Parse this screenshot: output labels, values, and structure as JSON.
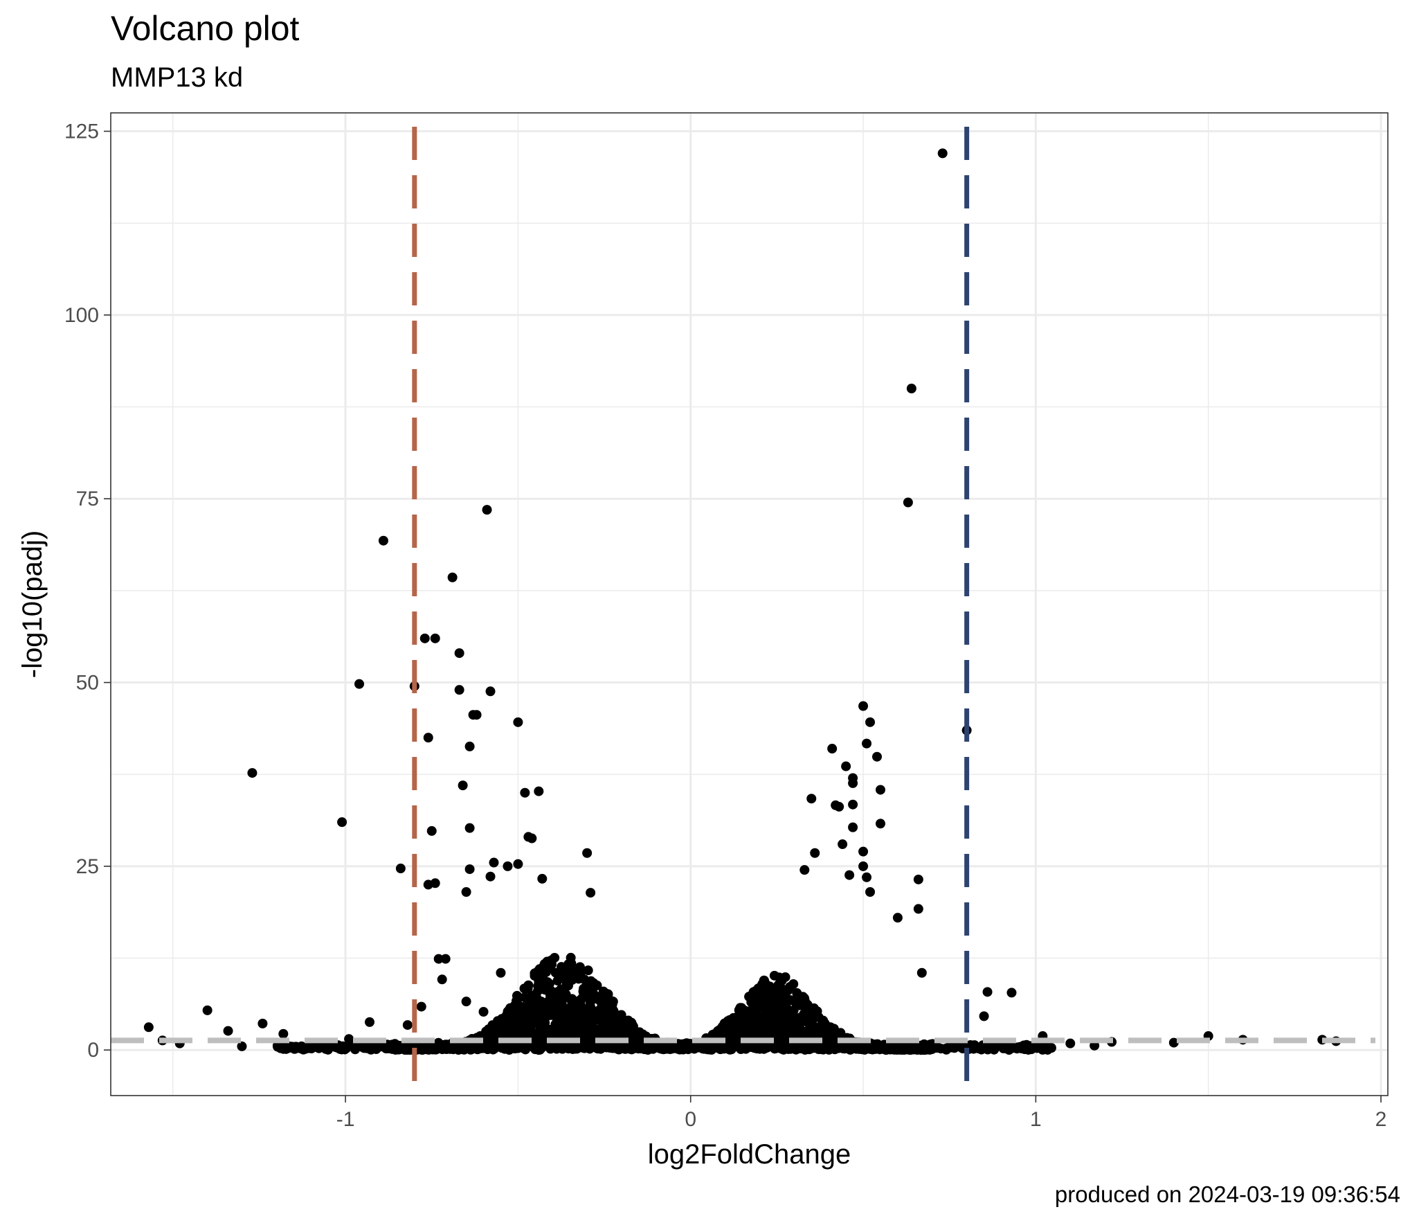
{
  "chart_data": {
    "type": "scatter",
    "title": "Volcano plot",
    "subtitle": "MMP13 kd",
    "caption": "produced on 2024-03-19 09:36:54",
    "xlabel": "log2FoldChange",
    "ylabel": "-log10(padj)",
    "xlim": [
      -1.68,
      2.02
    ],
    "ylim": [
      -6.2,
      127.5
    ],
    "x_ticks": [
      -1,
      0,
      1,
      2
    ],
    "x_tick_labels": [
      "-1",
      "0",
      "1",
      "2"
    ],
    "y_ticks": [
      0,
      25,
      50,
      75,
      100,
      125
    ],
    "y_tick_labels": [
      "0",
      "25",
      "50",
      "75",
      "100",
      "125"
    ],
    "grid": true,
    "legend": "none",
    "point_color": "#000000",
    "reference_lines": [
      {
        "orientation": "vertical",
        "value": -0.8,
        "color": "#B5654A",
        "style": "dashed"
      },
      {
        "orientation": "vertical",
        "value": 0.8,
        "color": "#2E4470",
        "style": "dashed"
      },
      {
        "orientation": "horizontal",
        "value": 1.3,
        "color": "#BEBEBE",
        "style": "dashed"
      }
    ],
    "points": [
      [
        0.73,
        122.0
      ],
      [
        0.64,
        90.0
      ],
      [
        0.63,
        74.5
      ],
      [
        0.8,
        43.5
      ],
      [
        -0.59,
        73.5
      ],
      [
        -0.89,
        69.3
      ],
      [
        -0.69,
        64.3
      ],
      [
        -0.77,
        56.0
      ],
      [
        -0.74,
        56.0
      ],
      [
        -0.67,
        54.0
      ],
      [
        -0.96,
        49.8
      ],
      [
        -0.8,
        49.5
      ],
      [
        -0.67,
        49.0
      ],
      [
        -0.58,
        48.8
      ],
      [
        -0.63,
        45.6
      ],
      [
        -0.62,
        45.6
      ],
      [
        -0.5,
        44.6
      ],
      [
        -0.76,
        42.5
      ],
      [
        -0.64,
        41.3
      ],
      [
        -1.27,
        37.7
      ],
      [
        -0.66,
        36.0
      ],
      [
        -0.48,
        35.0
      ],
      [
        -0.44,
        35.2
      ],
      [
        -1.01,
        31.0
      ],
      [
        -0.75,
        29.8
      ],
      [
        -0.64,
        30.2
      ],
      [
        -0.47,
        29.0
      ],
      [
        -0.46,
        28.8
      ],
      [
        -0.3,
        26.8
      ],
      [
        -0.84,
        24.7
      ],
      [
        -0.64,
        24.6
      ],
      [
        -0.58,
        23.6
      ],
      [
        -0.57,
        25.5
      ],
      [
        -0.53,
        25.0
      ],
      [
        -0.5,
        25.3
      ],
      [
        -0.76,
        22.5
      ],
      [
        -0.74,
        22.7
      ],
      [
        -0.65,
        21.5
      ],
      [
        -0.43,
        23.3
      ],
      [
        -0.29,
        21.4
      ],
      [
        0.5,
        46.8
      ],
      [
        0.52,
        44.6
      ],
      [
        0.51,
        41.7
      ],
      [
        0.54,
        39.9
      ],
      [
        0.41,
        41.0
      ],
      [
        0.45,
        38.6
      ],
      [
        0.47,
        37.0
      ],
      [
        0.47,
        36.3
      ],
      [
        0.55,
        35.4
      ],
      [
        0.35,
        34.2
      ],
      [
        0.42,
        33.3
      ],
      [
        0.43,
        33.1
      ],
      [
        0.47,
        33.4
      ],
      [
        0.47,
        30.3
      ],
      [
        0.55,
        30.8
      ],
      [
        0.44,
        28.0
      ],
      [
        0.36,
        26.8
      ],
      [
        0.5,
        27.0
      ],
      [
        0.5,
        25.0
      ],
      [
        0.33,
        24.5
      ],
      [
        0.46,
        23.8
      ],
      [
        0.51,
        23.5
      ],
      [
        0.66,
        23.2
      ],
      [
        0.52,
        21.5
      ],
      [
        0.66,
        19.2
      ],
      [
        0.6,
        18.0
      ],
      [
        0.86,
        7.9
      ],
      [
        0.93,
        7.8
      ],
      [
        0.85,
        4.6
      ],
      [
        0.67,
        10.5
      ],
      [
        -1.4,
        5.4
      ],
      [
        -1.57,
        3.1
      ],
      [
        -1.34,
        2.6
      ],
      [
        -1.24,
        3.6
      ],
      [
        -1.18,
        2.2
      ],
      [
        -0.93,
        3.8
      ],
      [
        -0.82,
        3.4
      ],
      [
        -0.78,
        5.9
      ],
      [
        -0.72,
        9.6
      ],
      [
        -0.71,
        12.4
      ],
      [
        -0.73,
        12.4
      ],
      [
        -0.55,
        10.5
      ],
      [
        -0.65,
        6.6
      ],
      [
        -0.6,
        5.2
      ],
      [
        -1.53,
        1.3
      ],
      [
        -1.48,
        0.9
      ],
      [
        -1.3,
        0.5
      ],
      [
        -1.19,
        0.8
      ],
      [
        -1.08,
        1.0
      ],
      [
        -0.99,
        1.5
      ],
      [
        -0.9,
        0.9
      ],
      [
        1.02,
        1.9
      ],
      [
        1.1,
        0.9
      ],
      [
        1.17,
        0.6
      ],
      [
        1.22,
        1.1
      ],
      [
        1.4,
        1.0
      ],
      [
        1.5,
        1.9
      ],
      [
        1.6,
        1.4
      ],
      [
        1.83,
        1.4
      ],
      [
        1.87,
        1.2
      ]
    ],
    "clusters": [
      {
        "center": -0.37,
        "sigma": 0.12,
        "count": 1400,
        "xmin": -0.85,
        "xmax": -0.02,
        "height": 13.0,
        "seed": 11
      },
      {
        "center": 0.25,
        "sigma": 0.1,
        "count": 1200,
        "xmin": 0.03,
        "xmax": 0.7,
        "height": 10.0,
        "seed": 29
      },
      {
        "center": -0.05,
        "sigma": 0.55,
        "count": 700,
        "xmin": -1.2,
        "xmax": 1.05,
        "height": 0.9,
        "seed": 47
      }
    ]
  }
}
